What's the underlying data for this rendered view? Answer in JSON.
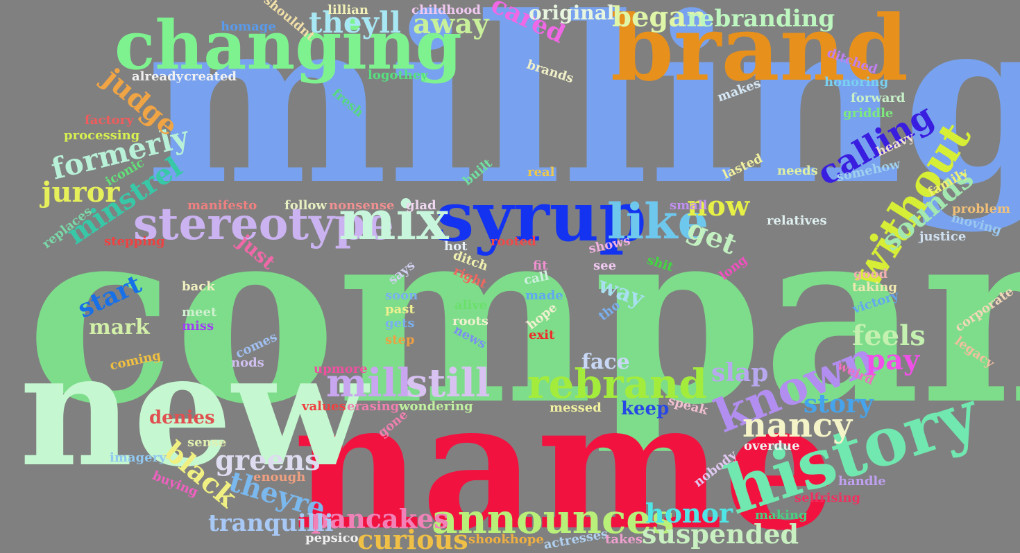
{
  "words": [
    {
      "text": "company",
      "color": "#7ddd8a"
    },
    {
      "text": "milling",
      "color": "#78a2ef"
    },
    {
      "text": "name",
      "color": "#f2123f"
    },
    {
      "text": "new",
      "color": "#c5f7d0"
    },
    {
      "text": "brand",
      "color": "#e8901c"
    },
    {
      "text": "changing",
      "color": "#7ff290"
    },
    {
      "text": "syrup",
      "color": "#1433f0"
    },
    {
      "text": "history",
      "color": "#70e8b0"
    },
    {
      "text": "stereotype",
      "color": "#cbb3f2"
    },
    {
      "text": "mix",
      "color": "#c8f6dc"
    },
    {
      "text": "like",
      "color": "#6ec8ee"
    },
    {
      "text": "announces",
      "color": "#b8f07a"
    },
    {
      "text": "rebrand",
      "color": "#a4ec3c"
    },
    {
      "text": "known",
      "color": "#b18ef0"
    },
    {
      "text": "mill",
      "color": "#c9a6f0"
    },
    {
      "text": "still",
      "color": "#d8c2f2"
    },
    {
      "text": "without",
      "color": "#d6ee36"
    },
    {
      "text": "calling",
      "color": "#3a1ee0"
    },
    {
      "text": "nancy",
      "color": "#f4f4c8"
    },
    {
      "text": "formerly",
      "color": "#b8f0d8"
    },
    {
      "text": "theyll",
      "color": "#a8e8f4"
    },
    {
      "text": "began",
      "color": "#dff6a8"
    },
    {
      "text": "rebranding",
      "color": "#bef6c0"
    },
    {
      "text": "away",
      "color": "#c8f09a"
    },
    {
      "text": "judge",
      "color": "#f0a444"
    },
    {
      "text": "juror",
      "color": "#e6f05a"
    },
    {
      "text": "minstrel",
      "color": "#38c8a8"
    },
    {
      "text": "now",
      "color": "#e6f046"
    },
    {
      "text": "get",
      "color": "#c2f0c0"
    },
    {
      "text": "sounds",
      "color": "#a2e8b0"
    },
    {
      "text": "greens",
      "color": "#dedcf0"
    },
    {
      "text": "black",
      "color": "#f0f082"
    },
    {
      "text": "theyre",
      "color": "#7ab8ee"
    },
    {
      "text": "pancakes",
      "color": "#f082b8"
    },
    {
      "text": "curious",
      "color": "#f0c046"
    },
    {
      "text": "suspended",
      "color": "#c8f0c0"
    },
    {
      "text": "honor",
      "color": "#4ee6e6"
    },
    {
      "text": "tranquilli",
      "color": "#a8c8f6"
    },
    {
      "text": "feels",
      "color": "#c4f0b0"
    },
    {
      "text": "pay",
      "color": "#f050e8"
    },
    {
      "text": "story",
      "color": "#46a4ec"
    },
    {
      "text": "slap",
      "color": "#b8a8f0"
    },
    {
      "text": "cared",
      "color": "#f068e6"
    },
    {
      "text": "original",
      "color": "#e8f6e0"
    },
    {
      "text": "start",
      "color": "#1870e8"
    },
    {
      "text": "face",
      "color": "#c8d8f6"
    },
    {
      "text": "way",
      "color": "#a8e0f0"
    },
    {
      "text": "mark",
      "color": "#d2f0a8"
    },
    {
      "text": "just",
      "color": "#f068a8"
    },
    {
      "text": "denies",
      "color": "#e05050"
    },
    {
      "text": "keep",
      "color": "#2848e6"
    },
    {
      "text": "childhood",
      "color": "#f0c8f0"
    },
    {
      "text": "lillian",
      "color": "#f0f0b8"
    },
    {
      "text": "shouldnt",
      "color": "#f0dfa8"
    },
    {
      "text": "homage",
      "color": "#5a9aea"
    },
    {
      "text": "already",
      "color": "#f0f0f0"
    },
    {
      "text": "created",
      "color": "#f0f0f0"
    },
    {
      "text": "logothey",
      "color": "#56e080"
    },
    {
      "text": "brands",
      "color": "#f0f0c8"
    },
    {
      "text": "ditched",
      "color": "#c080f0"
    },
    {
      "text": "honoring",
      "color": "#7ad0f0"
    },
    {
      "text": "makes",
      "color": "#d6e8f6"
    },
    {
      "text": "forward",
      "color": "#c8f0c8"
    },
    {
      "text": "griddle",
      "color": "#7de87d"
    },
    {
      "text": "heavy",
      "color": "#f0e0d0"
    },
    {
      "text": "fresh",
      "color": "#56d880"
    },
    {
      "text": "factory",
      "color": "#f05c5c"
    },
    {
      "text": "processing",
      "color": "#d6f050"
    },
    {
      "text": "iconic",
      "color": "#62e07a"
    },
    {
      "text": "built",
      "color": "#70e0a0"
    },
    {
      "text": "real",
      "color": "#f0c848"
    },
    {
      "text": "lasted",
      "color": "#f0f0a0"
    },
    {
      "text": "needs",
      "color": "#e0f0a0"
    },
    {
      "text": "somehow",
      "color": "#a0d0f0"
    },
    {
      "text": "family",
      "color": "#f0f070"
    },
    {
      "text": "replaces",
      "color": "#7ad8a8"
    },
    {
      "text": "manifesto",
      "color": "#f08080"
    },
    {
      "text": "follow",
      "color": "#e6f0c0"
    },
    {
      "text": "nonsense",
      "color": "#f09090"
    },
    {
      "text": "glad",
      "color": "#f0d8f0"
    },
    {
      "text": "small",
      "color": "#c090f0"
    },
    {
      "text": "relatives",
      "color": "#e0f0f0"
    },
    {
      "text": "problem",
      "color": "#f0c078"
    },
    {
      "text": "moving",
      "color": "#9ac8f0"
    },
    {
      "text": "justice",
      "color": "#d0e0f0"
    },
    {
      "text": "stepping",
      "color": "#f04040"
    },
    {
      "text": "hot",
      "color": "#e6f0f6"
    },
    {
      "text": "rooted",
      "color": "#f04848"
    },
    {
      "text": "shows",
      "color": "#f0b0e0"
    },
    {
      "text": "see",
      "color": "#f0c8f0"
    },
    {
      "text": "shit",
      "color": "#40d840"
    },
    {
      "text": "long",
      "color": "#f050c0"
    },
    {
      "text": "good",
      "color": "#f0b0b0"
    },
    {
      "text": "taking",
      "color": "#f0e8b0"
    },
    {
      "text": "victory",
      "color": "#62a8f0"
    },
    {
      "text": "corporate",
      "color": "#f0d8b8"
    },
    {
      "text": "legacy",
      "color": "#f0c0a0"
    },
    {
      "text": "back",
      "color": "#f0f0c0"
    },
    {
      "text": "meet",
      "color": "#d0f0d0"
    },
    {
      "text": "miss",
      "color": "#a040f0"
    },
    {
      "text": "says",
      "color": "#d0d0f0"
    },
    {
      "text": "soon",
      "color": "#7ab0f0"
    },
    {
      "text": "past",
      "color": "#f0f090"
    },
    {
      "text": "gets",
      "color": "#7ab0f0"
    },
    {
      "text": "step",
      "color": "#f0a040"
    },
    {
      "text": "ditch",
      "color": "#f0f0b0"
    },
    {
      "text": "right",
      "color": "#f06860"
    },
    {
      "text": "alive",
      "color": "#6ae06a"
    },
    {
      "text": "roots",
      "color": "#f0f0d0"
    },
    {
      "text": "news",
      "color": "#7a90f0"
    },
    {
      "text": "fit",
      "color": "#f090d0"
    },
    {
      "text": "call",
      "color": "#d0f0e0"
    },
    {
      "text": "made",
      "color": "#60a8f0"
    },
    {
      "text": "hope",
      "color": "#f0f0d0"
    },
    {
      "text": "exit",
      "color": "#f02828"
    },
    {
      "text": "tho",
      "color": "#7ab0f0"
    },
    {
      "text": "comes",
      "color": "#a0c0f0"
    },
    {
      "text": "nods",
      "color": "#d0c0f0"
    },
    {
      "text": "coming",
      "color": "#f0c040"
    },
    {
      "text": "upmore",
      "color": "#f050a0"
    },
    {
      "text": "values",
      "color": "#f04040"
    },
    {
      "text": "erasing",
      "color": "#f080b0"
    },
    {
      "text": "wondering",
      "color": "#c0f0a0"
    },
    {
      "text": "messed",
      "color": "#f0f0a0"
    },
    {
      "text": "speak",
      "color": "#f0c0d0"
    },
    {
      "text": "gone",
      "color": "#f080b0"
    },
    {
      "text": "weird",
      "color": "#f070c0"
    },
    {
      "text": "sense",
      "color": "#e0f0b0"
    },
    {
      "text": "imagery",
      "color": "#90c8f0"
    },
    {
      "text": "enough",
      "color": "#f0a080"
    },
    {
      "text": "buying",
      "color": "#f060c0"
    },
    {
      "text": "overdue",
      "color": "#f0f0f0"
    },
    {
      "text": "nobody",
      "color": "#e0c8f0"
    },
    {
      "text": "handle",
      "color": "#c0a0f0"
    },
    {
      "text": "selfrising",
      "color": "#f03060"
    },
    {
      "text": "making",
      "color": "#48d080"
    },
    {
      "text": "pepsico",
      "color": "#f0f0f0"
    },
    {
      "text": "shookhope",
      "color": "#f0b040"
    },
    {
      "text": "actresses",
      "color": "#b0d0f0"
    },
    {
      "text": "takes",
      "color": "#f0a0d0"
    }
  ]
}
